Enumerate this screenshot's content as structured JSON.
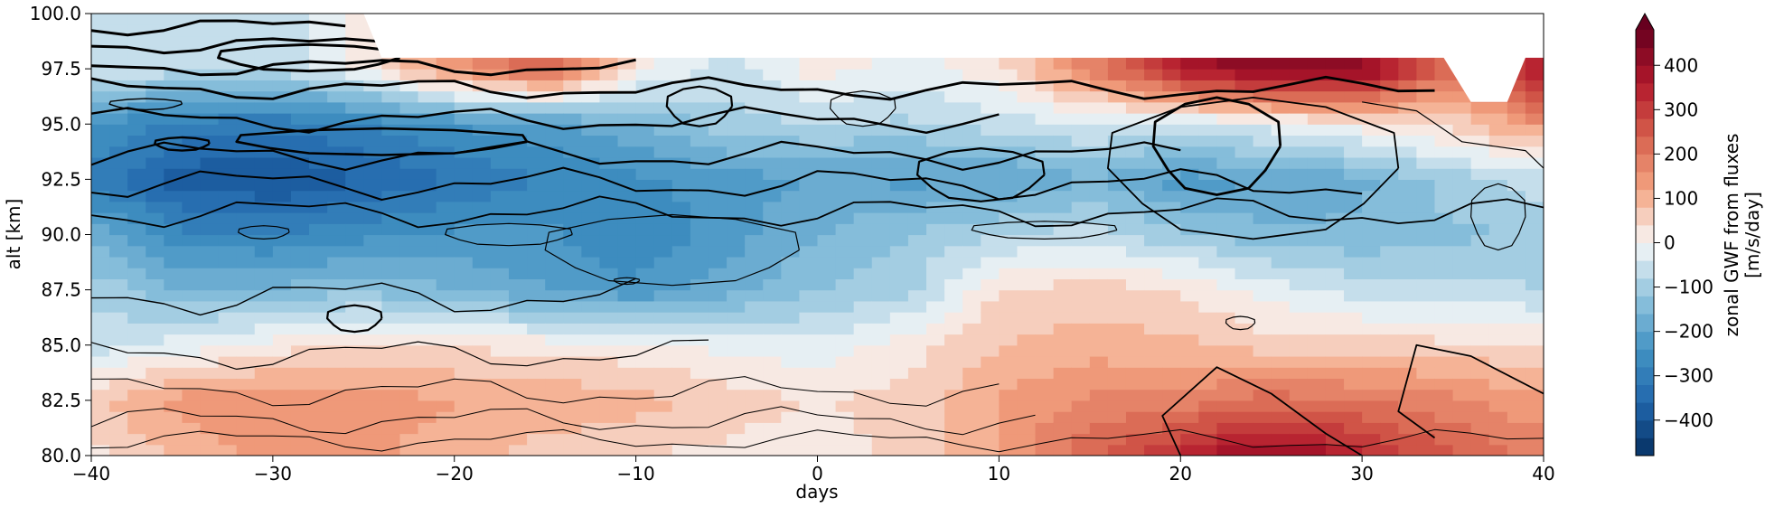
{
  "chart_data": {
    "type": "heatmap",
    "title": "",
    "xlabel": "days",
    "ylabel": "alt [km]",
    "xlim": [
      -40,
      40
    ],
    "ylim": [
      80,
      100
    ],
    "xticks": [
      -40,
      -30,
      -20,
      -10,
      0,
      10,
      20,
      30,
      40
    ],
    "xtick_labels": [
      "−40",
      "−30",
      "−20",
      "−10",
      "0",
      "10",
      "20",
      "30",
      "40"
    ],
    "yticks": [
      80,
      82.5,
      85,
      87.5,
      90,
      92.5,
      95,
      97.5,
      100
    ],
    "ytick_labels": [
      "80.0",
      "82.5",
      "85.0",
      "87.5",
      "90.0",
      "92.5",
      "95.0",
      "97.5",
      "100.0"
    ],
    "colorbar": {
      "label_line1": "zonal GWF from fluxes",
      "label_line2": "[m/s/day]",
      "min": -480,
      "max": 480,
      "extend": "max",
      "colormap": "RdBu_r",
      "ticks": [
        -400,
        -300,
        -200,
        -100,
        0,
        100,
        200,
        300,
        400
      ],
      "tick_labels": [
        "−400",
        "−300",
        "−200",
        "−100",
        "0",
        "100",
        "200",
        "300",
        "400"
      ]
    },
    "x": [
      -40,
      -35,
      -30,
      -25,
      -20,
      -15,
      -10,
      -5,
      0,
      5,
      10,
      15,
      20,
      25,
      30,
      35,
      40
    ],
    "y": [
      80,
      82.5,
      85,
      87.5,
      90,
      92.5,
      95,
      97.5
    ],
    "z": [
      [
        20,
        90,
        140,
        130,
        100,
        60,
        40,
        30,
        10,
        60,
        120,
        230,
        330,
        430,
        330,
        240,
        180
      ],
      [
        70,
        140,
        150,
        140,
        120,
        110,
        100,
        60,
        40,
        60,
        120,
        170,
        180,
        220,
        200,
        170,
        130
      ],
      [
        -60,
        -20,
        20,
        50,
        40,
        20,
        10,
        -10,
        -30,
        20,
        80,
        100,
        90,
        60,
        60,
        50,
        40
      ],
      [
        -90,
        -160,
        -150,
        -130,
        -160,
        -200,
        -230,
        -180,
        -120,
        -90,
        40,
        60,
        40,
        -20,
        -60,
        -60,
        -80
      ],
      [
        -170,
        -270,
        -280,
        -250,
        -230,
        -230,
        -280,
        -220,
        -160,
        -120,
        -80,
        -60,
        -110,
        -150,
        -150,
        -130,
        -110
      ],
      [
        -300,
        -380,
        -400,
        -360,
        -320,
        -280,
        -250,
        -220,
        -200,
        -210,
        -210,
        -160,
        -220,
        -200,
        -170,
        -100,
        -60
      ],
      [
        -230,
        -300,
        -310,
        -280,
        -240,
        -210,
        -170,
        -100,
        -80,
        -90,
        -60,
        -40,
        -60,
        -20,
        20,
        50,
        150
      ],
      [
        -40,
        -60,
        -80,
        10,
        150,
        230,
        20,
        -60,
        20,
        -20,
        30,
        180,
        360,
        440,
        420,
        200,
        360
      ]
    ],
    "white_mask_top": "no data region above upper boundary",
    "contour_overlay": "black line contours of a second field"
  }
}
